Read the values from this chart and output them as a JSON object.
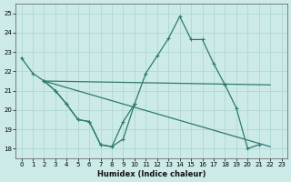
{
  "xlabel": "Humidex (Indice chaleur)",
  "color": "#2d7a6e",
  "bg_color": "#cceae8",
  "grid_color": "#aad4d0",
  "ylim": [
    17.5,
    25.5
  ],
  "xlim": [
    -0.5,
    23.5
  ],
  "yticks": [
    18,
    19,
    20,
    21,
    22,
    23,
    24,
    25
  ],
  "xticks": [
    0,
    1,
    2,
    3,
    4,
    5,
    6,
    7,
    8,
    9,
    10,
    11,
    12,
    13,
    14,
    15,
    16,
    17,
    18,
    19,
    20,
    21,
    22,
    23
  ],
  "line1_x": [
    0,
    1,
    2,
    3,
    4,
    5,
    6,
    7,
    8,
    9,
    10,
    11,
    12,
    13,
    14,
    15,
    16,
    17,
    18,
    19,
    20,
    21,
    22,
    23
  ],
  "line1_y": [
    22.7,
    21.9,
    21.5,
    21.0,
    20.3,
    19.5,
    19.4,
    18.2,
    18.1,
    18.5,
    20.3,
    21.9,
    22.8,
    23.7,
    24.85,
    23.65,
    23.65,
    22.4,
    21.3,
    20.1,
    18.0,
    18.2,
    null,
    null
  ],
  "line2_x": [
    2,
    3,
    4,
    5,
    6,
    7,
    8,
    9,
    10
  ],
  "line2_y": [
    21.5,
    21.0,
    20.3,
    19.5,
    19.4,
    18.2,
    18.1,
    19.4,
    20.3
  ],
  "line3_x": [
    2,
    22
  ],
  "line3_y": [
    21.5,
    21.3
  ],
  "line4_x": [
    2,
    22
  ],
  "line4_y": [
    21.5,
    18.1
  ]
}
